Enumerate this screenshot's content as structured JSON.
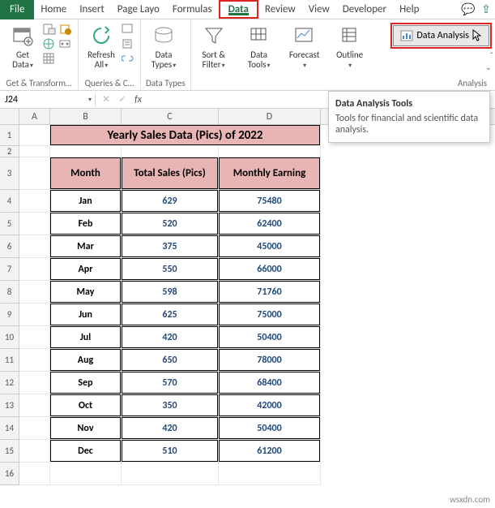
{
  "tabs": {
    "file": "File",
    "items": [
      "Home",
      "Insert",
      "Page Layo",
      "Formulas",
      "Data",
      "Review",
      "View",
      "Developer",
      "Help"
    ],
    "active_index": 4
  },
  "ribbon": {
    "groups": {
      "get_transform": {
        "label": "Get & Transform…",
        "button": "Get\nData"
      },
      "queries": {
        "label": "Queries & C…",
        "button": "Refresh\nAll"
      },
      "data_types": {
        "label": "Data Types",
        "button": "Data\nTypes"
      },
      "sort_filter": {
        "button": "Sort &\nFilter"
      },
      "data_tools": {
        "button": "Data\nTools"
      },
      "forecast": {
        "button": "Forecast"
      },
      "outline": {
        "button": "Outline"
      }
    },
    "analysis": {
      "button": "Data Analysis",
      "label": "Analysis"
    }
  },
  "namebox": {
    "ref": "J24"
  },
  "tooltip": {
    "title": "Data Analysis Tools",
    "body": "Tools for financial and scientific data analysis."
  },
  "columns": [
    "A",
    "B",
    "C",
    "D"
  ],
  "table": {
    "title": "Yearly Sales Data (Pics) of 2022",
    "headers": [
      "Month",
      "Total Sales (Pics)",
      "Monthly Earning"
    ],
    "rows": [
      [
        "Jan",
        "629",
        "75480"
      ],
      [
        "Feb",
        "520",
        "62400"
      ],
      [
        "Mar",
        "375",
        "45000"
      ],
      [
        "Apr",
        "550",
        "66000"
      ],
      [
        "May",
        "598",
        "71760"
      ],
      [
        "Jun",
        "625",
        "75000"
      ],
      [
        "Jul",
        "420",
        "50400"
      ],
      [
        "Aug",
        "650",
        "78000"
      ],
      [
        "Sep",
        "570",
        "68400"
      ],
      [
        "Oct",
        "350",
        "42000"
      ],
      [
        "Nov",
        "420",
        "50400"
      ],
      [
        "Dec",
        "510",
        "61200"
      ]
    ]
  },
  "colors": {
    "excel_green": "#217346",
    "highlight_red": "#d22",
    "header_pink": "#e8b4b4",
    "num_blue": "#22487a"
  },
  "watermark": "wsxdn.com"
}
